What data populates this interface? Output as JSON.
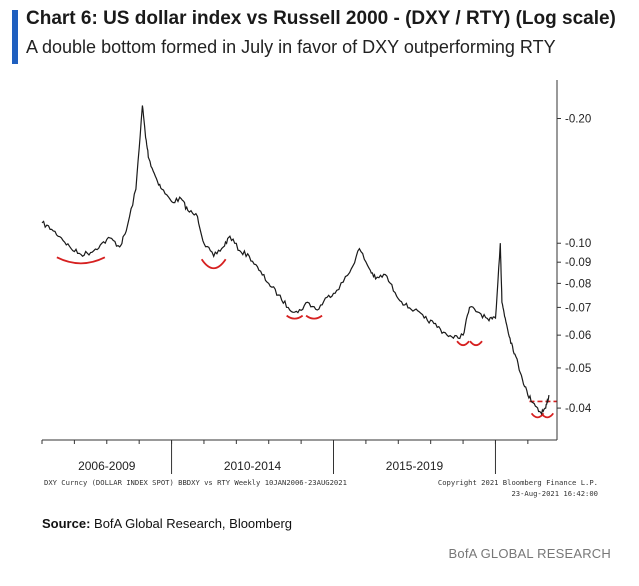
{
  "title": "Chart 6: US dollar index vs Russell 2000 - (DXY / RTY) (Log scale)",
  "subtitle": "A double bottom formed in July in favor of DXY outperforming RTY",
  "source_label": "Source:",
  "source_text": " BofA Global Research, Bloomberg",
  "brand": "BofA GLOBAL RESEARCH",
  "footer_left": "DXY Curncy (DOLLAR INDEX SPOT) BBDXY vs RTY  Weekly 10JAN2006-23AUG2021",
  "footer_right_1": "Copyright 2021 Bloomberg Finance L.P.",
  "footer_right_2": "23-Aug-2021 16:42:00",
  "colors": {
    "line": "#1a1a1a",
    "annotation": "#d62020",
    "accent": "#1f5fbf",
    "axis": "#333333"
  },
  "chart_data": {
    "type": "line",
    "title": "Chart 6: US dollar index vs Russell 2000 - (DXY / RTY) (Log scale)",
    "yscale": "log",
    "ylim": [
      0.0335,
      0.245
    ],
    "xlim": [
      2006.0,
      2021.9
    ],
    "y_ticks": [
      0.2,
      0.1,
      0.09,
      0.08,
      0.07,
      0.06,
      0.05,
      0.04
    ],
    "y_tick_labels": [
      "0.20",
      "0.10",
      "0.09",
      "0.08",
      "0.07",
      "0.06",
      "0.05",
      "0.04"
    ],
    "x_groups": [
      {
        "label": "2006-2009",
        "start": 2006.0,
        "end": 2010.0
      },
      {
        "label": "2010-2014",
        "start": 2010.0,
        "end": 2015.0
      },
      {
        "label": "2015-2019",
        "start": 2015.0,
        "end": 2020.0
      }
    ],
    "grid": false,
    "series": [
      {
        "x": [
          2006.0,
          2006.3,
          2006.6,
          2006.9,
          2007.2,
          2007.5,
          2007.8,
          2008.1,
          2008.4,
          2008.6,
          2008.9,
          2009.1,
          2009.2,
          2009.3,
          2009.5,
          2009.7,
          2010.0,
          2010.3,
          2010.5,
          2010.8,
          2011.0,
          2011.3,
          2011.6,
          2011.8,
          2012.1,
          2012.4,
          2012.7,
          2013.0,
          2013.3,
          2013.6,
          2013.9,
          2014.2,
          2014.5,
          2014.8,
          2015.1,
          2015.5,
          2015.8,
          2016.1,
          2016.3,
          2016.6,
          2016.9,
          2017.2,
          2017.5,
          2017.8,
          2018.1,
          2018.4,
          2018.7,
          2019.0,
          2019.2,
          2019.5,
          2019.8,
          2020.0,
          2020.15,
          2020.2,
          2020.3,
          2020.45,
          2020.6,
          2020.8,
          2021.0,
          2021.2,
          2021.4,
          2021.55,
          2021.65
        ],
        "y": [
          0.112,
          0.108,
          0.103,
          0.097,
          0.094,
          0.095,
          0.099,
          0.103,
          0.098,
          0.107,
          0.135,
          0.215,
          0.18,
          0.16,
          0.145,
          0.135,
          0.126,
          0.128,
          0.12,
          0.116,
          0.1,
          0.093,
          0.098,
          0.104,
          0.096,
          0.093,
          0.086,
          0.08,
          0.075,
          0.07,
          0.068,
          0.072,
          0.069,
          0.074,
          0.077,
          0.085,
          0.097,
          0.087,
          0.082,
          0.084,
          0.076,
          0.071,
          0.069,
          0.066,
          0.064,
          0.061,
          0.059,
          0.06,
          0.07,
          0.068,
          0.065,
          0.066,
          0.1,
          0.072,
          0.066,
          0.059,
          0.054,
          0.048,
          0.043,
          0.041,
          0.039,
          0.04,
          0.043
        ]
      }
    ]
  }
}
